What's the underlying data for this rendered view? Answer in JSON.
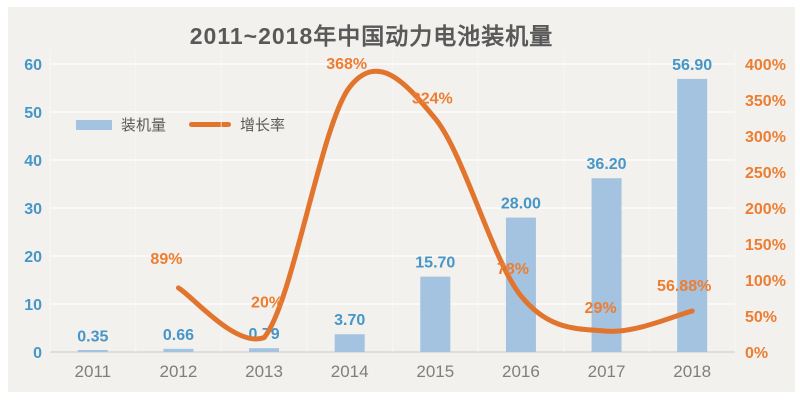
{
  "title": "2011~2018年中国动力电池装机量",
  "legend": {
    "bar_label": "装机量",
    "line_label": "增长率"
  },
  "colors": {
    "background": "#f2f1ee",
    "bar_fill": "#a3c3e0",
    "line_stroke": "#e2752e",
    "blue_text": "#4696c8",
    "orange_text": "#ed7d31",
    "x_axis_text": "#7f7f7f",
    "title_text": "#595959",
    "gridline": "#fbfaf9",
    "baseline": "#d9d6d2"
  },
  "chart_data": {
    "type": "bar+line combo",
    "title": "2011~2018年中国动力电池装机量",
    "categories": [
      "2011",
      "2012",
      "2013",
      "2014",
      "2015",
      "2016",
      "2017",
      "2018"
    ],
    "series": [
      {
        "name": "装机量",
        "type": "bar",
        "axis": "left",
        "values": [
          0.35,
          0.66,
          0.79,
          3.7,
          15.7,
          28.0,
          36.2,
          56.9
        ],
        "labels": [
          "0.35",
          "0.66",
          "0.79",
          "3.70",
          "15.70",
          "28.00",
          "36.20",
          "56.90"
        ]
      },
      {
        "name": "增长率",
        "type": "line",
        "axis": "right",
        "values": [
          null,
          89,
          20,
          368,
          324,
          78,
          29,
          56.88
        ],
        "labels": [
          null,
          "89%",
          "20%",
          "368%",
          "324%",
          "78%",
          "29%",
          "56.88%"
        ]
      }
    ],
    "left_axis": {
      "min": 0,
      "max": 60,
      "ticks": [
        0,
        10,
        20,
        30,
        40,
        50,
        60
      ]
    },
    "right_axis": {
      "min_pct": 0,
      "max_pct": 400,
      "tick_values": [
        0,
        50,
        100,
        150,
        200,
        250,
        300,
        350,
        400
      ],
      "tick_labels": [
        "0%",
        "50%",
        "100%",
        "150%",
        "200%",
        "250%",
        "300%",
        "350%",
        "400%"
      ]
    },
    "grid": true,
    "legend_position": "top-left-inside",
    "smooth_line": true
  }
}
